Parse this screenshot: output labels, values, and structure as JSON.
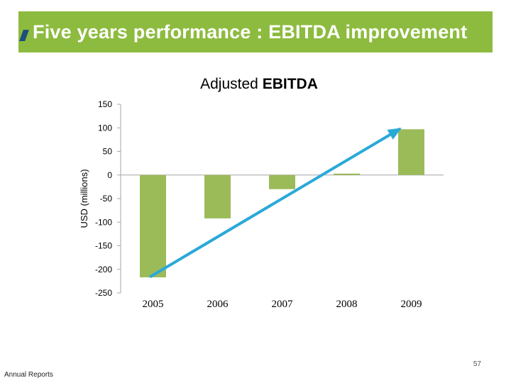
{
  "slide": {
    "title": "Five years performance : EBITDA improvement",
    "footer_left": "Annual Reports",
    "page_number": "57"
  },
  "colors": {
    "header": "#8dbb3f",
    "bar": "#9bbb59",
    "arrow": "#2aa9d8",
    "mark": "#1f4f7c"
  },
  "chart_data": {
    "type": "bar",
    "title_plain": "Adjusted ",
    "title_bold": "EBITDA",
    "ylabel": "USD  (millions)",
    "xlabel": "",
    "categories": [
      "2005",
      "2006",
      "2007",
      "2008",
      "2009"
    ],
    "values": [
      -217,
      -92,
      -30,
      3,
      97
    ],
    "ylim": [
      -250,
      150
    ],
    "yticks": [
      "150",
      "100",
      "50",
      "0",
      "-50",
      "-100",
      "-150",
      "-200",
      "-250"
    ],
    "ytick_values": [
      150,
      100,
      50,
      0,
      -50,
      -100,
      -150,
      -200,
      -250
    ],
    "trend_arrow": {
      "from_category": "2005",
      "from_value": -215,
      "to_category": "2009",
      "to_value": 97
    }
  }
}
